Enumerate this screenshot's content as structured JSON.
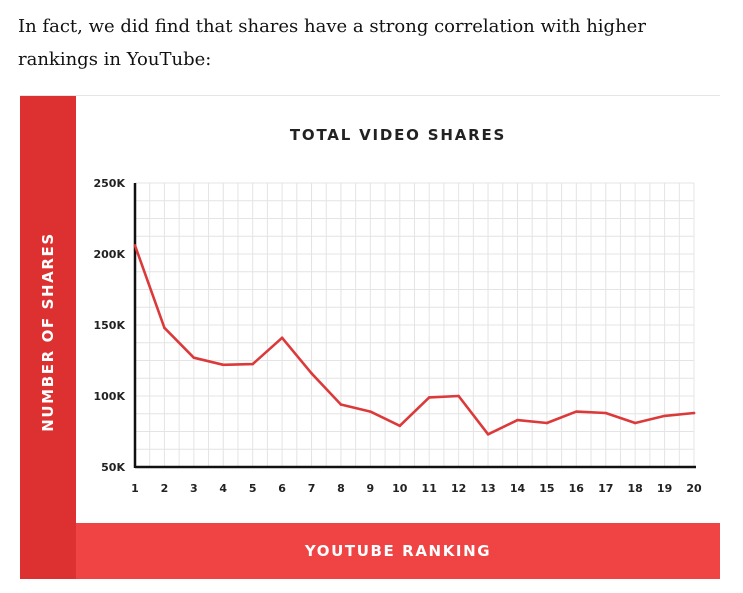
{
  "intro_text": "In fact, we did find that shares have a strong correlation with higher rankings in YouTube:",
  "colors": {
    "side_bar": "#dd3030",
    "bottom_bar": "#f04444",
    "line": "#dc3a3a",
    "grid": "#e4e4e4",
    "axis": "#111111"
  },
  "chart_data": {
    "type": "line",
    "title": "TOTAL VIDEO SHARES",
    "xlabel": "YOUTUBE RANKING",
    "ylabel": "NUMBER OF SHARES",
    "categories": [
      "1",
      "2",
      "3",
      "4",
      "5",
      "6",
      "7",
      "8",
      "9",
      "10",
      "11",
      "12",
      "13",
      "14",
      "15",
      "16",
      "17",
      "18",
      "19",
      "20"
    ],
    "series": [
      {
        "name": "Total video shares",
        "values": [
          206000,
          148000,
          127000,
          122000,
          122500,
          141000,
          116000,
          94000,
          89000,
          79000,
          99000,
          100000,
          73000,
          83000,
          81000,
          89000,
          88000,
          81000,
          86000,
          88000
        ]
      }
    ],
    "yticks": [
      50000,
      100000,
      150000,
      200000,
      250000
    ],
    "ytick_labels": [
      "50K",
      "100K",
      "150K",
      "200K",
      "250K"
    ],
    "ylim": [
      50000,
      250000
    ],
    "grid": true
  }
}
